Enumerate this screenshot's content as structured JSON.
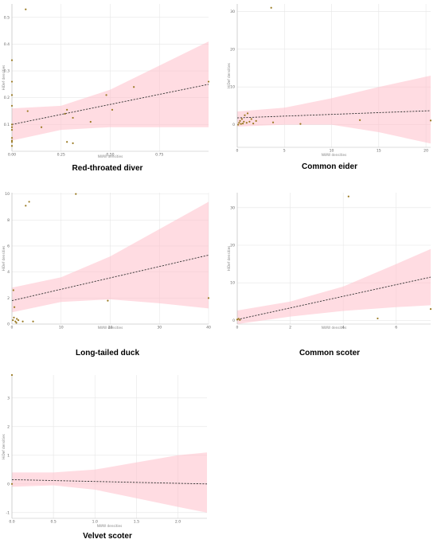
{
  "colors": {
    "band": "#ffc0cb",
    "point": "#9a7a22",
    "line": "#333333",
    "grid": "#e6e6e6"
  },
  "chart_data": [
    {
      "type": "scatter",
      "title": "Red-throated diver",
      "xlabel": "NWW densities",
      "ylabel": "HiDef densities",
      "xlim": [
        0,
        1.0
      ],
      "ylim": [
        0,
        0.55
      ],
      "xticks": [
        0,
        0.25,
        0.5,
        0.75
      ],
      "xtick_labels": [
        "0.00",
        "0.25",
        "0.50",
        "0.75"
      ],
      "yticks": [
        0.1,
        0.2,
        0.3,
        0.4,
        0.5
      ],
      "ytick_labels": [
        "0.1",
        "0.2",
        "0.3",
        "0.4",
        "0.5"
      ],
      "points": [
        [
          0.07,
          0.53
        ],
        [
          0.0,
          0.34
        ],
        [
          0.0,
          0.26
        ],
        [
          0.0,
          0.21
        ],
        [
          0.0,
          0.17
        ],
        [
          0.0,
          0.1
        ],
        [
          0.0,
          0.09
        ],
        [
          0.0,
          0.08
        ],
        [
          0.0,
          0.05
        ],
        [
          0.0,
          0.04
        ],
        [
          0.0,
          0.035
        ],
        [
          0.0,
          0.02
        ],
        [
          0.08,
          0.15
        ],
        [
          0.15,
          0.09
        ],
        [
          0.27,
          0.14
        ],
        [
          0.28,
          0.155
        ],
        [
          0.28,
          0.035
        ],
        [
          0.31,
          0.03
        ],
        [
          0.31,
          0.125
        ],
        [
          0.4,
          0.11
        ],
        [
          0.48,
          0.21
        ],
        [
          0.51,
          0.155
        ],
        [
          0.62,
          0.24
        ],
        [
          1.0,
          0.26
        ]
      ],
      "trend": {
        "x": [
          0,
          1.0
        ],
        "y": [
          0.1,
          0.25
        ]
      },
      "band": {
        "x": [
          0,
          0.25,
          0.5,
          0.75,
          1.0
        ],
        "lower": [
          0.04,
          0.08,
          0.09,
          0.09,
          0.09
        ],
        "upper": [
          0.16,
          0.17,
          0.23,
          0.32,
          0.41
        ]
      }
    },
    {
      "type": "scatter",
      "title": "Common eider",
      "xlabel": "NWW densities",
      "ylabel": "HiDef densities",
      "xlim": [
        0,
        20.5
      ],
      "ylim": [
        -6,
        32
      ],
      "xticks": [
        0,
        5,
        10,
        15,
        20
      ],
      "xtick_labels": [
        "0",
        "5",
        "10",
        "15",
        "20"
      ],
      "yticks": [
        0,
        10,
        20,
        30
      ],
      "ytick_labels": [
        "0",
        "10",
        "20",
        "30"
      ],
      "points": [
        [
          3.6,
          31
        ],
        [
          0.1,
          0
        ],
        [
          0.2,
          0.5
        ],
        [
          0.3,
          1
        ],
        [
          0.4,
          0.2
        ],
        [
          0.5,
          1.5
        ],
        [
          0.6,
          0.3
        ],
        [
          0.7,
          0.8
        ],
        [
          0.8,
          2.5
        ],
        [
          1.0,
          0.5
        ],
        [
          1.1,
          3
        ],
        [
          1.3,
          0.8
        ],
        [
          1.5,
          1.5
        ],
        [
          1.7,
          0.3
        ],
        [
          2.0,
          1
        ],
        [
          3.8,
          0.6
        ],
        [
          6.7,
          0.2
        ],
        [
          13.0,
          1.2
        ],
        [
          20.5,
          1.1
        ]
      ],
      "trend": {
        "x": [
          0,
          20.5
        ],
        "y": [
          1.8,
          3.7
        ]
      },
      "band": {
        "x": [
          0,
          5,
          10,
          15,
          20.5
        ],
        "lower": [
          -0.5,
          0,
          0,
          -2,
          -5
        ],
        "upper": [
          3.5,
          4.5,
          7,
          10,
          13
        ]
      }
    },
    {
      "type": "scatter",
      "title": "Long-tailed duck",
      "xlabel": "NWW densities",
      "ylabel": "HiDef densities",
      "xlim": [
        0,
        40
      ],
      "ylim": [
        0,
        10.1
      ],
      "xticks": [
        0,
        10,
        20,
        30,
        40
      ],
      "xtick_labels": [
        "0",
        "10",
        "20",
        "30",
        "40"
      ],
      "yticks": [
        0,
        2,
        4,
        6,
        8,
        10
      ],
      "ytick_labels": [
        "0",
        "2",
        "4",
        "6",
        "8",
        "10"
      ],
      "points": [
        [
          13,
          10
        ],
        [
          3.5,
          9.4
        ],
        [
          2.8,
          9.1
        ],
        [
          0.3,
          2.6
        ],
        [
          0.5,
          1.3
        ],
        [
          0.2,
          0.3
        ],
        [
          0.4,
          0.5
        ],
        [
          0.7,
          0.2
        ],
        [
          0.9,
          0.1
        ],
        [
          1.0,
          0.4
        ],
        [
          1.3,
          0.3
        ],
        [
          2.2,
          0.2
        ],
        [
          4.3,
          0.2
        ],
        [
          19.5,
          1.8
        ],
        [
          40,
          2.0
        ]
      ],
      "trend": {
        "x": [
          0,
          40
        ],
        "y": [
          1.8,
          5.3
        ]
      },
      "band": {
        "x": [
          0,
          10,
          20,
          30,
          40
        ],
        "lower": [
          0.9,
          1.7,
          1.9,
          1.6,
          1.2
        ],
        "upper": [
          2.8,
          3.6,
          5.2,
          7.3,
          9.4
        ]
      }
    },
    {
      "type": "scatter",
      "title": "Common scoter",
      "xlabel": "NWW densities",
      "ylabel": "HiDef densities",
      "xlim": [
        0,
        7.3
      ],
      "ylim": [
        -1,
        34
      ],
      "xticks": [
        0,
        2,
        4,
        6
      ],
      "xtick_labels": [
        "0",
        "2",
        "4",
        "6"
      ],
      "yticks": [
        0,
        10,
        20,
        30
      ],
      "ytick_labels": [
        "0",
        "10",
        "20",
        "30"
      ],
      "points": [
        [
          4.2,
          33
        ],
        [
          0.0,
          0.2
        ],
        [
          0.1,
          0.1
        ],
        [
          0.05,
          0.4
        ],
        [
          5.3,
          0.5
        ],
        [
          7.3,
          3
        ]
      ],
      "trend": {
        "x": [
          0,
          7.3
        ],
        "y": [
          0.2,
          11.5
        ]
      },
      "band": {
        "x": [
          0,
          2,
          4,
          6,
          7.3
        ],
        "lower": [
          -1,
          1,
          2.5,
          3.5,
          4
        ],
        "upper": [
          2.6,
          5,
          9,
          15,
          19
        ]
      }
    },
    {
      "type": "scatter",
      "title": "Velvet scoter",
      "xlabel": "NWW densities",
      "ylabel": "HiDef densities",
      "xlim": [
        0,
        2.35
      ],
      "ylim": [
        -1.2,
        3.8
      ],
      "xticks": [
        0,
        0.5,
        1.0,
        1.5,
        2.0
      ],
      "xtick_labels": [
        "0.0",
        "0.5",
        "1.0",
        "1.5",
        "2.0"
      ],
      "yticks": [
        -1,
        0,
        1,
        2,
        3
      ],
      "ytick_labels": [
        "-1",
        "0",
        "1",
        "2",
        "3"
      ],
      "points": [
        [
          0.0,
          3.8
        ],
        [
          0.0,
          0.0
        ]
      ],
      "trend": {
        "x": [
          0,
          2.35
        ],
        "y": [
          0.15,
          0.0
        ]
      },
      "band": {
        "x": [
          0,
          0.5,
          1.0,
          1.5,
          2.0,
          2.35
        ],
        "lower": [
          -0.1,
          -0.05,
          -0.2,
          -0.5,
          -0.8,
          -1.0
        ],
        "upper": [
          0.4,
          0.4,
          0.5,
          0.75,
          1.0,
          1.1
        ]
      }
    }
  ]
}
